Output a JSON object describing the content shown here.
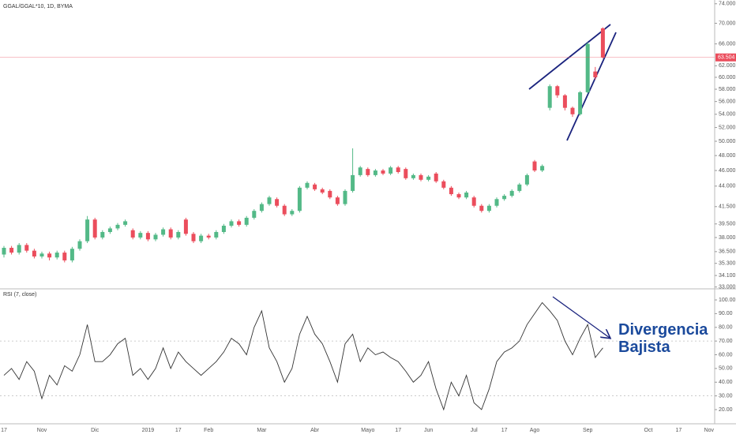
{
  "chart_data": [
    {
      "type": "candlestick",
      "title": "GGAL/GGAL*10, 1D, BYMA",
      "log_scale": true,
      "up_color": "#53b987",
      "down_color": "#eb4d5c",
      "last_price": 63.504,
      "last_price_color": "#eb4d5c",
      "ylim": [
        32.9,
        74.8
      ],
      "yticks": [
        {
          "value": 74,
          "label": "74.000"
        },
        {
          "value": 70,
          "label": "70.000"
        },
        {
          "value": 66,
          "label": "66.000"
        },
        {
          "value": 62,
          "label": "62.000"
        },
        {
          "value": 60,
          "label": "60.000"
        },
        {
          "value": 58,
          "label": "58.000"
        },
        {
          "value": 56,
          "label": "56.000"
        },
        {
          "value": 54,
          "label": "54.000"
        },
        {
          "value": 52,
          "label": "52.000"
        },
        {
          "value": 50,
          "label": "50.000"
        },
        {
          "value": 48,
          "label": "48.000"
        },
        {
          "value": 46,
          "label": "46.000"
        },
        {
          "value": 44,
          "label": "44.000"
        },
        {
          "value": 41.5,
          "label": "41.500"
        },
        {
          "value": 39.5,
          "label": "39.500"
        },
        {
          "value": 38,
          "label": "38.000"
        },
        {
          "value": 36.5,
          "label": "36.500"
        },
        {
          "value": 35.3,
          "label": "35.300"
        },
        {
          "value": 34.1,
          "label": "34.100"
        },
        {
          "value": 33,
          "label": "33.000"
        }
      ],
      "categories": [
        "17",
        null,
        null,
        null,
        null,
        "Nov",
        null,
        null,
        null,
        null,
        null,
        null,
        "Dic",
        null,
        null,
        null,
        null,
        null,
        null,
        "2019",
        null,
        null,
        null,
        "17",
        null,
        null,
        null,
        "Feb",
        null,
        null,
        null,
        null,
        null,
        null,
        "Mar",
        null,
        null,
        null,
        null,
        null,
        null,
        "Abr",
        null,
        null,
        null,
        null,
        null,
        null,
        "Mayo",
        null,
        null,
        null,
        "17",
        null,
        null,
        null,
        "Jun",
        null,
        null,
        null,
        null,
        null,
        "Jul",
        null,
        null,
        null,
        "17",
        null,
        null,
        null,
        "Ago",
        null,
        null,
        null,
        null,
        null,
        null,
        "Sep",
        null,
        null,
        null,
        null,
        null,
        null,
        null,
        "Oct",
        null,
        null,
        null,
        "17",
        null,
        null,
        null,
        "Nov"
      ],
      "open": [
        36.2,
        36.9,
        36.4,
        37.2,
        36.6,
        36.0,
        36.3,
        35.9,
        36.4,
        35.6,
        36.8,
        37.6,
        40.0,
        38.0,
        38.6,
        39.0,
        39.4,
        38.8,
        38.0,
        38.5,
        37.8,
        38.3,
        38.9,
        38.0,
        40.0,
        38.4,
        37.6,
        38.2,
        38.0,
        38.6,
        39.3,
        39.8,
        39.4,
        40.2,
        41.0,
        41.8,
        42.4,
        41.6,
        40.6,
        41.0,
        43.8,
        44.2,
        43.6,
        43.4,
        42.6,
        41.8,
        43.4,
        45.4,
        46.2,
        45.4,
        46.0,
        45.6,
        46.4,
        46.2,
        45.0,
        45.4,
        44.8,
        45.6,
        44.6,
        43.8,
        43.0,
        42.6,
        42.6,
        41.6,
        41.0,
        41.6,
        42.4,
        42.8,
        43.4,
        44.2,
        47.2,
        46.0,
        55.0,
        58.5,
        57.0,
        55.0,
        54.0,
        57.5,
        61.0,
        69.0,
        null,
        null,
        null,
        null,
        null,
        null,
        null,
        null,
        null,
        null,
        null,
        null,
        null,
        null
      ],
      "high": [
        37.1,
        37.1,
        37.4,
        37.4,
        36.8,
        36.5,
        36.5,
        36.6,
        36.6,
        37.0,
        37.8,
        40.4,
        40.2,
        38.8,
        39.2,
        39.6,
        40.0,
        39.0,
        38.7,
        38.7,
        38.5,
        39.1,
        39.1,
        38.8,
        40.2,
        38.6,
        38.4,
        38.4,
        38.8,
        39.5,
        40.0,
        40.0,
        40.4,
        41.2,
        42.0,
        42.8,
        42.6,
        41.8,
        41.2,
        44.0,
        44.6,
        44.4,
        43.8,
        43.6,
        42.8,
        43.6,
        49.0,
        46.6,
        46.4,
        46.2,
        46.2,
        46.6,
        46.6,
        46.4,
        45.6,
        45.6,
        45.4,
        45.8,
        44.8,
        44.0,
        43.2,
        43.4,
        42.8,
        41.8,
        41.8,
        42.6,
        43.0,
        43.6,
        44.4,
        45.6,
        47.4,
        46.8,
        58.8,
        58.7,
        57.2,
        55.2,
        57.7,
        66.3,
        61.8,
        69.2,
        null,
        null,
        null,
        null,
        null,
        null,
        null,
        null,
        null,
        null,
        null,
        null,
        null,
        null
      ],
      "low": [
        35.9,
        36.2,
        36.2,
        36.4,
        35.8,
        35.8,
        35.6,
        35.7,
        35.4,
        35.4,
        36.6,
        37.4,
        37.8,
        37.8,
        38.4,
        38.8,
        39.2,
        37.8,
        37.8,
        37.6,
        37.6,
        38.1,
        37.8,
        37.8,
        38.2,
        37.4,
        37.4,
        37.8,
        37.8,
        38.4,
        39.1,
        39.2,
        39.2,
        40.0,
        40.8,
        41.6,
        41.4,
        40.4,
        40.4,
        40.8,
        43.6,
        43.4,
        43.0,
        42.4,
        41.6,
        41.6,
        43.2,
        45.2,
        45.2,
        45.2,
        45.4,
        45.4,
        45.6,
        44.8,
        44.8,
        44.6,
        44.6,
        44.4,
        43.6,
        42.8,
        42.4,
        42.4,
        41.4,
        40.8,
        40.8,
        41.4,
        42.2,
        42.6,
        43.2,
        44.0,
        45.8,
        45.8,
        54.6,
        56.6,
        54.6,
        53.6,
        53.8,
        57.3,
        59.6,
        63.3,
        null,
        null,
        null,
        null,
        null,
        null,
        null,
        null,
        null,
        null,
        null,
        null,
        null,
        null
      ],
      "close": [
        36.9,
        36.4,
        37.2,
        36.6,
        36.0,
        36.3,
        35.9,
        36.4,
        35.6,
        36.8,
        37.6,
        40.0,
        38.0,
        38.6,
        39.0,
        39.4,
        39.8,
        38.0,
        38.5,
        37.8,
        38.3,
        38.9,
        38.0,
        38.6,
        38.4,
        37.6,
        38.2,
        38.0,
        38.6,
        39.3,
        39.8,
        39.4,
        40.2,
        41.0,
        41.8,
        42.6,
        41.6,
        40.6,
        41.0,
        43.8,
        44.4,
        43.6,
        43.2,
        42.6,
        41.8,
        43.4,
        45.4,
        46.4,
        45.4,
        46.0,
        45.6,
        46.4,
        45.8,
        45.0,
        45.4,
        44.8,
        45.2,
        44.6,
        43.8,
        43.0,
        42.6,
        43.2,
        41.6,
        41.0,
        41.6,
        42.4,
        42.8,
        43.4,
        44.2,
        45.4,
        46.0,
        46.6,
        58.5,
        57.0,
        55.0,
        54.0,
        57.5,
        66.0,
        60.0,
        63.5,
        null,
        null,
        null,
        null,
        null,
        null,
        null,
        null,
        null,
        null,
        null,
        null,
        null,
        null
      ]
    },
    {
      "type": "line",
      "title": "RSI (7, close)",
      "color": "#333333",
      "bands": [
        70,
        30
      ],
      "annotation": "Divergencia Bajista",
      "ylim": [
        10.8,
        107.5
      ],
      "yticks": [
        {
          "value": 100,
          "label": "100.00"
        },
        {
          "value": 90,
          "label": "90.00"
        },
        {
          "value": 80,
          "label": "80.00"
        },
        {
          "value": 70,
          "label": "70.00"
        },
        {
          "value": 60,
          "label": "60.00"
        },
        {
          "value": 50,
          "label": "50.00"
        },
        {
          "value": 40,
          "label": "40.00"
        },
        {
          "value": 30,
          "label": "30.00"
        },
        {
          "value": 20,
          "label": "20.00"
        }
      ],
      "values": [
        45,
        50,
        42,
        55,
        48,
        28,
        45,
        38,
        52,
        48,
        60,
        82,
        55,
        55,
        60,
        68,
        72,
        45,
        50,
        42,
        50,
        65,
        50,
        62,
        55,
        50,
        45,
        50,
        55,
        62,
        72,
        68,
        60,
        80,
        92,
        65,
        55,
        40,
        50,
        75,
        88,
        75,
        68,
        55,
        40,
        68,
        75,
        55,
        65,
        60,
        62,
        58,
        55,
        48,
        40,
        45,
        55,
        35,
        20,
        40,
        30,
        45,
        25,
        20,
        35,
        55,
        62,
        65,
        70,
        82,
        90,
        98,
        92,
        85,
        70,
        60,
        72,
        82,
        58,
        65,
        null,
        null,
        null,
        null,
        null,
        null,
        null,
        null,
        null,
        null,
        null,
        null,
        null,
        null
      ]
    }
  ]
}
